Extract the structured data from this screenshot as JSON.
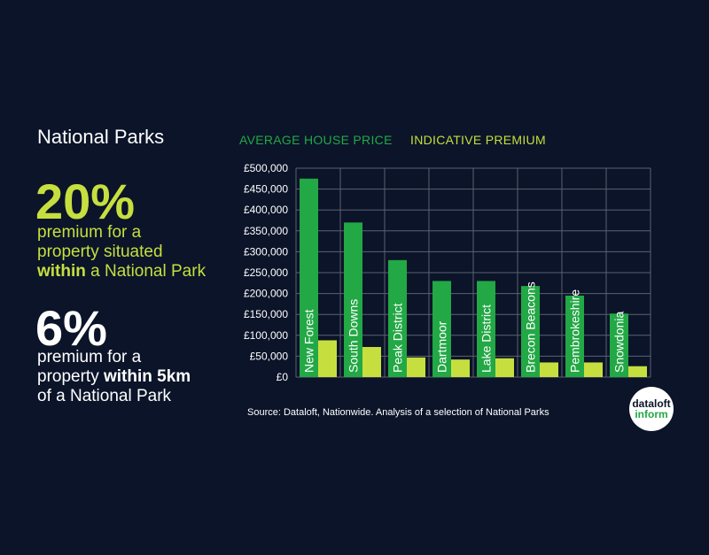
{
  "left_panel": {
    "title": "National Parks",
    "stat1": {
      "value": "20%",
      "line1": "premium for a",
      "line2": "property situated",
      "line3_bold": "within",
      "line3_rest": " a National Park"
    },
    "stat2": {
      "value": "6%",
      "line1": "premium for a",
      "line2_plain": "property ",
      "line2_bold": "within 5km",
      "line3": "of a National Park"
    }
  },
  "legend": {
    "average": "AVERAGE HOUSE PRICE",
    "premium": "INDICATIVE PREMIUM"
  },
  "source": "Source: Dataloft, Nationwide. Analysis of a selection of National Parks",
  "logo": {
    "line1": "dataloft",
    "line2": "inform"
  },
  "colors": {
    "background": "#0b1429",
    "average": "#22a845",
    "premium": "#c6df3f",
    "grid": "#5c6170"
  },
  "chart_data": {
    "type": "bar",
    "categories": [
      "New Forest",
      "South Downs",
      "Peak District",
      "Dartmoor",
      "Lake District",
      "Brecon Beacons",
      "Pembrokeshire",
      "Snowdonia"
    ],
    "series": [
      {
        "name": "AVERAGE HOUSE PRICE",
        "values": [
          475000,
          370000,
          280000,
          230000,
          230000,
          218000,
          195000,
          152000
        ]
      },
      {
        "name": "INDICATIVE PREMIUM",
        "values": [
          88000,
          72000,
          47000,
          42000,
          45000,
          35000,
          35000,
          26000
        ]
      }
    ],
    "yticks": [
      "£0",
      "£50,000",
      "£100,000",
      "£150,000",
      "£200,000",
      "£250,000",
      "£300,000",
      "£350,000",
      "£400,000",
      "£450,000",
      "£500,000"
    ],
    "ylim": [
      0,
      500000
    ],
    "grid": true
  }
}
